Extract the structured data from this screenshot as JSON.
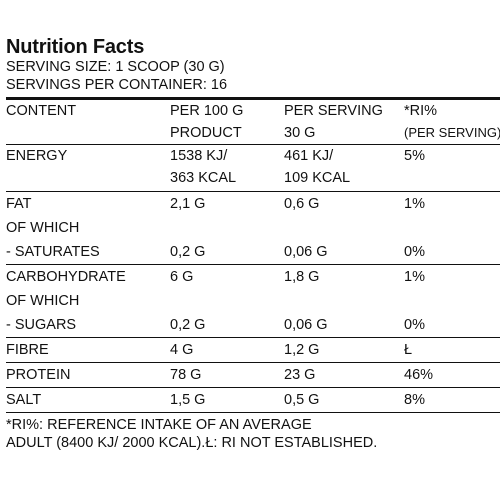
{
  "header": {
    "title": "Nutrition Facts",
    "serving_size": "SERVING SIZE: 1 SCOOP (30 G)",
    "servings_per_container": "SERVINGS PER CONTAINER: 16"
  },
  "columns": {
    "content": "CONTENT",
    "per100_line1": "PER 100 G",
    "per100_line2": "PRODUCT",
    "perserving_line1": "PER SERVING",
    "perserving_line2": "30 G",
    "ri_line1": "*RI%",
    "ri_line2": "(PER SERVING)"
  },
  "rows": {
    "energy": {
      "label": "ENERGY",
      "per100_a": "1538 KJ/",
      "per100_b": "363 KCAL",
      "serv_a": "461 KJ/",
      "serv_b": "109 KCAL",
      "ri": "5%"
    },
    "fat": {
      "label": "FAT",
      "per100": "2,1 G",
      "serv": "0,6 G",
      "ri": "1%"
    },
    "fat_of_which": {
      "label": "OF WHICH"
    },
    "saturates": {
      "label": "- SATURATES",
      "per100": "0,2 G",
      "serv": "0,06 G",
      "ri": "0%"
    },
    "carbohydrate": {
      "label": "CARBOHYDRATE",
      "per100": "6 G",
      "serv": "1,8 G",
      "ri": "1%"
    },
    "carb_of_which": {
      "label": "OF WHICH"
    },
    "sugars": {
      "label": "- SUGARS",
      "per100": "0,2 G",
      "serv": "0,06 G",
      "ri": "0%"
    },
    "fibre": {
      "label": "FIBRE",
      "per100": "4 G",
      "serv": "1,2 G",
      "ri": "Ł"
    },
    "protein": {
      "label": "PROTEIN",
      "per100": "78 G",
      "serv": "23 G",
      "ri": "46%"
    },
    "salt": {
      "label": "SALT",
      "per100": "1,5 G",
      "serv": "0,5 G",
      "ri": "8%"
    }
  },
  "footnote": {
    "line1": "*RI%: REFERENCE INTAKE OF AN AVERAGE",
    "line2": "ADULT (8400 KJ/ 2000 KCAL).Ł: RI NOT ESTABLISHED."
  }
}
